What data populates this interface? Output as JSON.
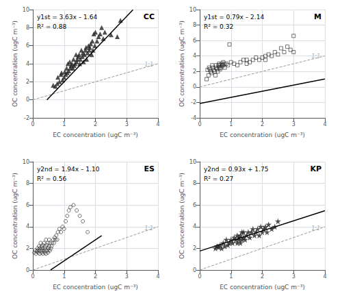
{
  "chart_data": [
    {
      "type": "scatter",
      "title": "CC",
      "xlabel": "EC concentration (ugC m⁻³)",
      "ylabel": "OC concentration (ugC m⁻³)",
      "xlim": [
        0,
        4
      ],
      "ylim": [
        -2,
        10
      ],
      "xticks": [
        0,
        1,
        2,
        3,
        4
      ],
      "yticks": [
        -2,
        0,
        2,
        4,
        6,
        8,
        10
      ],
      "grid": true,
      "annotations": [
        {
          "text": "y1st = 3.63x – 1.64"
        },
        {
          "text": "R² = 0.88"
        },
        {
          "text": "1:1",
          "x": 3.85,
          "y": 3.55,
          "color": "#999999"
        }
      ],
      "series": [
        {
          "type": "scatter",
          "marker": "triangle",
          "color": "#222222",
          "x": [
            0.65,
            0.72,
            0.78,
            0.8,
            0.85,
            0.9,
            0.92,
            0.95,
            1.0,
            1.02,
            1.05,
            1.08,
            1.1,
            1.12,
            1.15,
            1.18,
            1.2,
            1.22,
            1.25,
            1.28,
            1.3,
            1.32,
            1.35,
            1.38,
            1.4,
            1.42,
            1.45,
            1.48,
            1.5,
            1.52,
            1.55,
            1.58,
            1.6,
            1.62,
            1.65,
            1.68,
            1.7,
            1.72,
            1.75,
            1.78,
            1.8,
            1.82,
            1.85,
            1.88,
            1.9,
            1.92,
            1.95,
            1.98,
            2.0,
            2.05,
            2.1,
            2.15,
            2.2,
            2.25,
            2.3,
            2.5,
            2.7,
            2.8
          ],
          "values": [
            1.6,
            1.5,
            1.8,
            2.5,
            2.0,
            2.8,
            3.0,
            2.2,
            2.5,
            3.1,
            2.8,
            3.5,
            3.0,
            4.0,
            3.2,
            4.2,
            3.5,
            3.8,
            4.0,
            3.5,
            4.5,
            3.8,
            4.0,
            5.0,
            4.2,
            4.5,
            4.8,
            5.0,
            4.0,
            4.5,
            5.5,
            4.8,
            5.2,
            4.2,
            5.0,
            5.5,
            5.8,
            4.5,
            5.2,
            6.0,
            5.5,
            5.8,
            6.2,
            5.0,
            6.5,
            5.5,
            7.3,
            6.0,
            7.5,
            6.5,
            7.0,
            7.3,
            8.0,
            6.8,
            7.5,
            7.2,
            7.0,
            8.8
          ]
        },
        {
          "type": "line",
          "color": "#000000",
          "x": [
            0.45,
            3.2
          ],
          "values": [
            -0.0065,
            9.976
          ]
        },
        {
          "type": "line",
          "line_style": "dashed",
          "color": "#999999",
          "x": [
            0,
            4
          ],
          "values": [
            0,
            4
          ]
        }
      ]
    },
    {
      "type": "scatter",
      "title": "M",
      "xlabel": "EC concentration (ugC m⁻³)",
      "ylabel": "OC concentration (ugC m⁻³)",
      "xlim": [
        0,
        4
      ],
      "ylim": [
        -4,
        10
      ],
      "xticks": [
        0,
        1,
        2,
        3,
        4
      ],
      "yticks": [
        -4,
        -2,
        0,
        2,
        4,
        6,
        8,
        10
      ],
      "grid": true,
      "annotations": [
        {
          "text": "y1st = 0.79x – 2.14"
        },
        {
          "text": "R² = 0.32"
        },
        {
          "text": "1:1",
          "x": 3.85,
          "y": 3.55,
          "color": "#999999"
        }
      ],
      "series": [
        {
          "type": "scatter",
          "marker": "open square",
          "color": "#222222",
          "x": [
            0.22,
            0.25,
            0.28,
            0.3,
            0.32,
            0.35,
            0.38,
            0.4,
            0.42,
            0.45,
            0.48,
            0.5,
            0.52,
            0.52,
            0.55,
            0.58,
            0.6,
            0.62,
            0.62,
            0.65,
            0.65,
            0.68,
            0.7,
            0.72,
            0.75,
            0.75,
            0.78,
            0.8,
            0.85,
            0.9,
            0.95,
            1.0,
            1.1,
            1.2,
            1.3,
            1.4,
            1.5,
            1.5,
            1.6,
            1.7,
            1.8,
            1.9,
            2.0,
            2.1,
            2.1,
            2.2,
            2.3,
            2.4,
            2.5,
            2.6,
            2.7,
            2.8,
            2.9,
            3.0,
            3.0
          ],
          "values": [
            1.0,
            2.2,
            1.5,
            2.5,
            2.3,
            2.0,
            1.8,
            2.8,
            2.5,
            2.2,
            2.0,
            1.5,
            2.5,
            2.8,
            2.3,
            2.0,
            2.8,
            2.5,
            3.0,
            2.8,
            2.3,
            2.5,
            3.0,
            2.8,
            3.2,
            2.8,
            3.0,
            2.5,
            3.0,
            2.8,
            5.5,
            3.2,
            3.0,
            2.8,
            3.2,
            3.5,
            3.0,
            3.5,
            3.2,
            3.5,
            3.8,
            3.5,
            3.8,
            4.0,
            3.5,
            4.2,
            4.0,
            4.5,
            4.2,
            5.0,
            4.5,
            5.2,
            4.8,
            4.5,
            6.6
          ]
        },
        {
          "type": "line",
          "color": "#000000",
          "x": [
            0.0,
            4.0
          ],
          "values": [
            -2.14,
            1.02
          ]
        },
        {
          "type": "line",
          "line_style": "dashed",
          "color": "#999999",
          "x": [
            0,
            4
          ],
          "values": [
            0,
            4
          ]
        }
      ]
    },
    {
      "type": "scatter",
      "title": "ES",
      "xlabel": "EC concentration (ugC m⁻³)",
      "ylabel": "OC concentration (ugC m⁻³)",
      "xlim": [
        0,
        4
      ],
      "ylim": [
        0,
        10
      ],
      "xticks": [
        0,
        1,
        2,
        3,
        4
      ],
      "yticks": [
        0,
        2,
        4,
        6,
        8,
        10
      ],
      "grid": true,
      "annotations": [
        {
          "text": "y2nd = 1.94x – 1.10"
        },
        {
          "text": "R² = 0.56"
        },
        {
          "text": "1:1",
          "x": 3.85,
          "y": 3.55,
          "color": "#999999"
        }
      ],
      "series": [
        {
          "type": "scatter",
          "marker": "open circle",
          "color": "#222222",
          "x": [
            0.05,
            0.08,
            0.1,
            0.12,
            0.15,
            0.15,
            0.18,
            0.2,
            0.2,
            0.22,
            0.22,
            0.25,
            0.25,
            0.28,
            0.28,
            0.3,
            0.3,
            0.32,
            0.32,
            0.35,
            0.35,
            0.38,
            0.38,
            0.4,
            0.4,
            0.42,
            0.42,
            0.45,
            0.45,
            0.48,
            0.48,
            0.5,
            0.5,
            0.52,
            0.52,
            0.55,
            0.55,
            0.58,
            0.6,
            0.62,
            0.65,
            0.68,
            0.7,
            0.72,
            0.75,
            0.78,
            0.8,
            0.85,
            0.9,
            0.95,
            1.0,
            1.05,
            1.1,
            1.15,
            1.2,
            1.3,
            1.4,
            1.5,
            1.6,
            1.75
          ],
          "values": [
            1.6,
            1.8,
            1.5,
            1.7,
            1.8,
            2.0,
            1.6,
            1.8,
            2.2,
            1.5,
            2.0,
            1.8,
            2.5,
            1.6,
            2.2,
            1.8,
            2.0,
            1.5,
            2.3,
            1.8,
            2.5,
            1.6,
            2.0,
            1.8,
            2.2,
            1.5,
            2.8,
            1.8,
            2.3,
            1.6,
            2.5,
            1.8,
            2.0,
            2.2,
            2.8,
            1.8,
            2.5,
            2.0,
            2.2,
            2.5,
            2.8,
            2.5,
            3.0,
            2.8,
            3.2,
            2.8,
            3.5,
            3.8,
            3.5,
            4.0,
            3.8,
            4.5,
            5.0,
            5.5,
            5.8,
            6.0,
            5.5,
            5.0,
            4.5,
            3.5
          ]
        },
        {
          "type": "line",
          "color": "#000000",
          "x": [
            0.57,
            2.2
          ],
          "values": [
            0.0058,
            3.168
          ]
        },
        {
          "type": "line",
          "line_style": "dashed",
          "color": "#999999",
          "x": [
            0,
            4
          ],
          "values": [
            0,
            4
          ]
        }
      ]
    },
    {
      "type": "scatter",
      "title": "KP",
      "xlabel": "EC concentration (ugC m⁻³)",
      "ylabel": "OC concentration (ugC m⁻³)",
      "xlim": [
        0,
        4
      ],
      "ylim": [
        0,
        10
      ],
      "xticks": [
        0,
        1,
        2,
        3,
        4
      ],
      "yticks": [
        0,
        2,
        4,
        6,
        8,
        10
      ],
      "grid": true,
      "annotations": [
        {
          "text": "y2nd = 0.93x + 1.75"
        },
        {
          "text": "R² = 0.27"
        },
        {
          "text": "1:1",
          "x": 3.85,
          "y": 3.55,
          "color": "#999999"
        }
      ],
      "series": [
        {
          "type": "scatter",
          "marker": "star",
          "color": "#222222",
          "x": [
            0.5,
            0.55,
            0.6,
            0.65,
            0.7,
            0.75,
            0.8,
            0.85,
            0.9,
            0.95,
            1.0,
            1.05,
            1.1,
            1.15,
            1.2,
            1.2,
            1.25,
            1.25,
            1.3,
            1.3,
            1.35,
            1.35,
            1.4,
            1.4,
            1.45,
            1.5,
            1.55,
            1.6,
            1.65,
            1.7,
            1.75,
            1.8,
            1.85,
            1.9,
            1.95,
            2.0,
            2.05,
            2.1,
            2.15,
            2.2,
            2.3,
            2.4,
            2.5
          ],
          "values": [
            2.0,
            2.2,
            2.1,
            2.3,
            2.0,
            2.5,
            2.2,
            2.8,
            2.3,
            2.5,
            2.8,
            2.5,
            3.0,
            2.8,
            3.2,
            2.5,
            3.0,
            2.8,
            3.2,
            2.5,
            3.5,
            2.8,
            3.0,
            3.5,
            2.8,
            3.2,
            3.5,
            3.0,
            3.5,
            3.8,
            3.2,
            3.5,
            3.8,
            3.2,
            4.0,
            3.5,
            3.8,
            4.0,
            3.5,
            4.2,
            3.8,
            4.0,
            4.5
          ]
        },
        {
          "type": "line",
          "color": "#000000",
          "x": [
            0.0,
            4.0
          ],
          "values": [
            1.75,
            5.47
          ]
        },
        {
          "type": "line",
          "line_style": "dashed",
          "color": "#999999",
          "x": [
            0,
            4
          ],
          "values": [
            0,
            4
          ]
        }
      ]
    }
  ]
}
